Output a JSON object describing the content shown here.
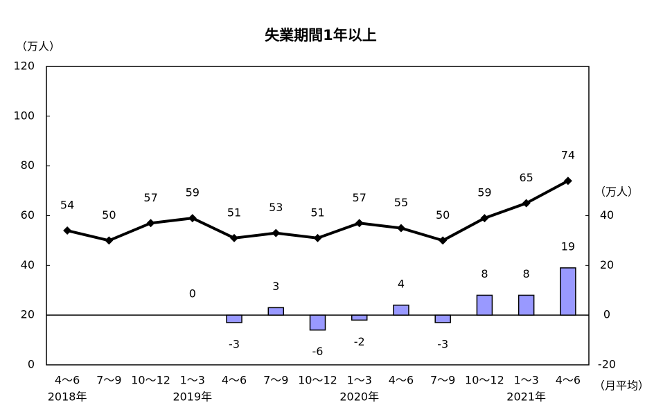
{
  "chart_data": {
    "type": "line-bar",
    "title": "失業期間1年以上",
    "y_unit": "（万人）",
    "y2_unit": "（万人）",
    "x_note": "（月平均）",
    "categories": [
      "4～6",
      "7～9",
      "10～12",
      "1～3",
      "4～6",
      "7～9",
      "10～12",
      "1～3",
      "4～6",
      "7～9",
      "10～12",
      "1～3",
      "4～6"
    ],
    "years": [
      "2018年",
      null,
      null,
      "2019年",
      null,
      null,
      null,
      "2020年",
      null,
      null,
      null,
      "2021年",
      null
    ],
    "series": [
      {
        "type": "line",
        "color": "#000000",
        "values": [
          54,
          50,
          57,
          59,
          51,
          53,
          51,
          57,
          55,
          50,
          59,
          65,
          74
        ]
      },
      {
        "type": "bar",
        "axis": "y2",
        "color": "#9999ff",
        "values": [
          null,
          null,
          null,
          0,
          -3,
          3,
          -6,
          -2,
          4,
          -3,
          8,
          8,
          19
        ]
      }
    ],
    "ylim": [
      0,
      120
    ],
    "yticks": [
      0,
      20,
      40,
      60,
      80,
      100,
      120
    ],
    "y2lim": [
      -20,
      100
    ],
    "y2ticks": [
      -20,
      0,
      20,
      40
    ]
  }
}
